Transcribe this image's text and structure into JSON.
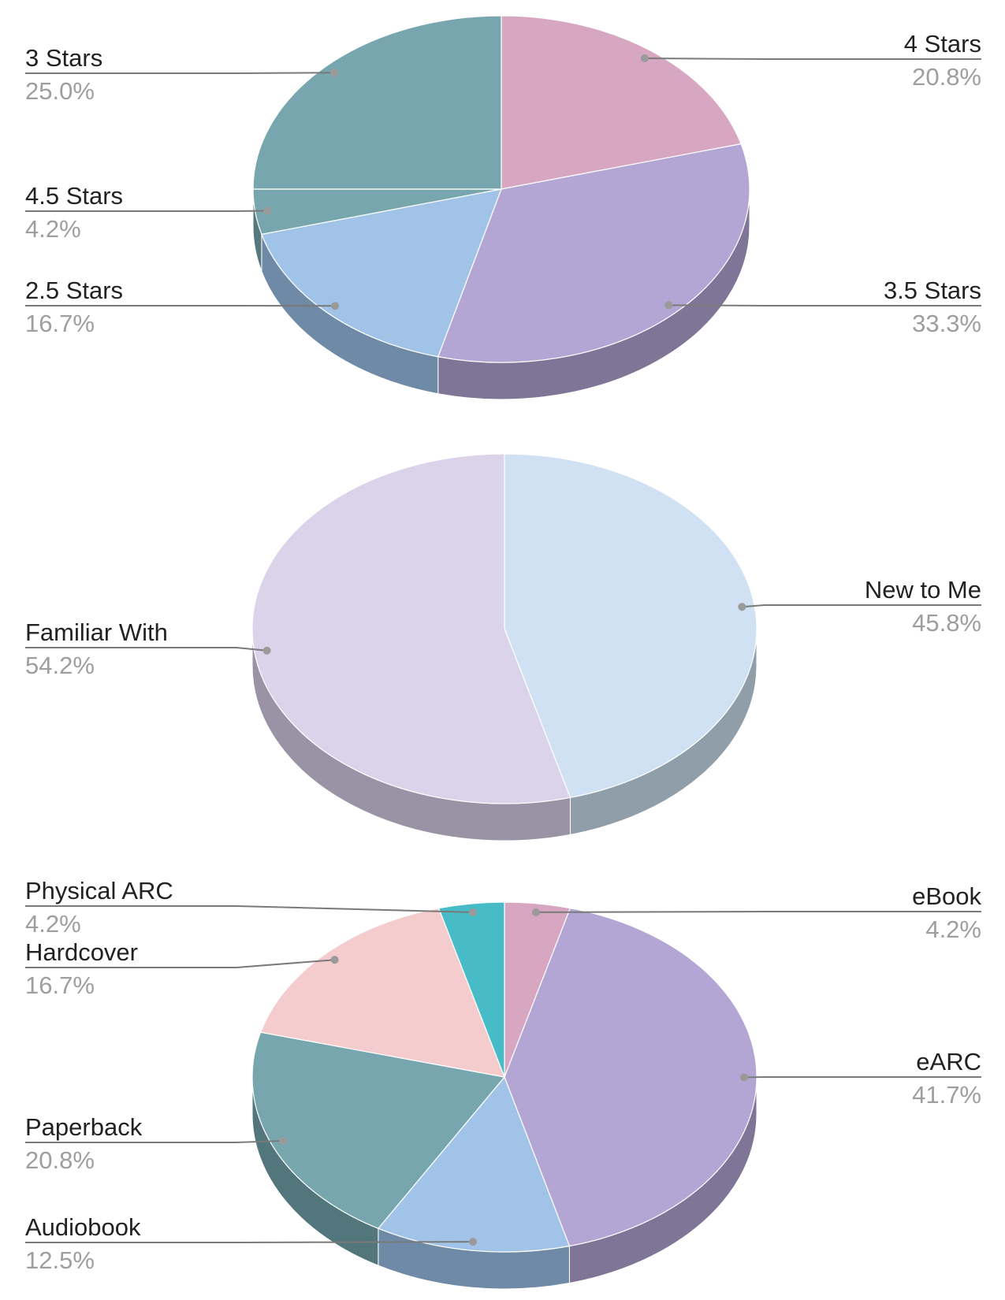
{
  "chart_data": [
    {
      "type": "pie",
      "style": "3d",
      "title": "",
      "legend": "none",
      "slices": [
        {
          "label": "4 Stars",
          "value": 20.8,
          "value_label": "20.8%",
          "color": "#d7a6c0",
          "side_color": "#9d7a8d"
        },
        {
          "label": "3.5 Stars",
          "value": 33.3,
          "value_label": "33.3%",
          "color": "#b3a6d5",
          "side_color": "#7f7596"
        },
        {
          "label": "2.5 Stars",
          "value": 16.7,
          "value_label": "16.7%",
          "color": "#a0c3e7",
          "side_color": "#6f8aa6"
        },
        {
          "label": "4.5 Stars",
          "value": 4.2,
          "value_label": "4.2%",
          "color": "#77a6ae",
          "side_color": "#56787e"
        },
        {
          "label": "3 Stars",
          "value": 25.0,
          "value_label": "25.0%",
          "color": "#77a6ae",
          "side_color": "#56787e"
        }
      ]
    },
    {
      "type": "pie",
      "style": "3d",
      "title": "",
      "legend": "none",
      "slices": [
        {
          "label": "New to Me",
          "value": 45.8,
          "value_label": "45.8%",
          "color": "#d0e1f3",
          "side_color": "#8f9ea8"
        },
        {
          "label": "Familiar With",
          "value": 54.2,
          "value_label": "54.2%",
          "color": "#dbd3ea",
          "side_color": "#9993a5"
        }
      ]
    },
    {
      "type": "pie",
      "style": "3d",
      "title": "",
      "legend": "none",
      "slices": [
        {
          "label": "eBook",
          "value": 4.2,
          "value_label": "4.2%",
          "color": "#d7a6c0",
          "side_color": "#9d7a8d"
        },
        {
          "label": "eARC",
          "value": 41.7,
          "value_label": "41.7%",
          "color": "#b3a6d5",
          "side_color": "#7f7596"
        },
        {
          "label": "Audiobook",
          "value": 12.5,
          "value_label": "12.5%",
          "color": "#a0c3e7",
          "side_color": "#6f8aa6"
        },
        {
          "label": "Paperback",
          "value": 20.8,
          "value_label": "20.8%",
          "color": "#77a6ae",
          "side_color": "#52767b"
        },
        {
          "label": "Hardcover",
          "value": 16.7,
          "value_label": "16.7%",
          "color": "#f4cccd",
          "side_color": "#b09495"
        },
        {
          "label": "Physical ARC",
          "value": 4.2,
          "value_label": "4.2%",
          "color": "#47bcc7",
          "side_color": "#33878f"
        }
      ]
    }
  ]
}
